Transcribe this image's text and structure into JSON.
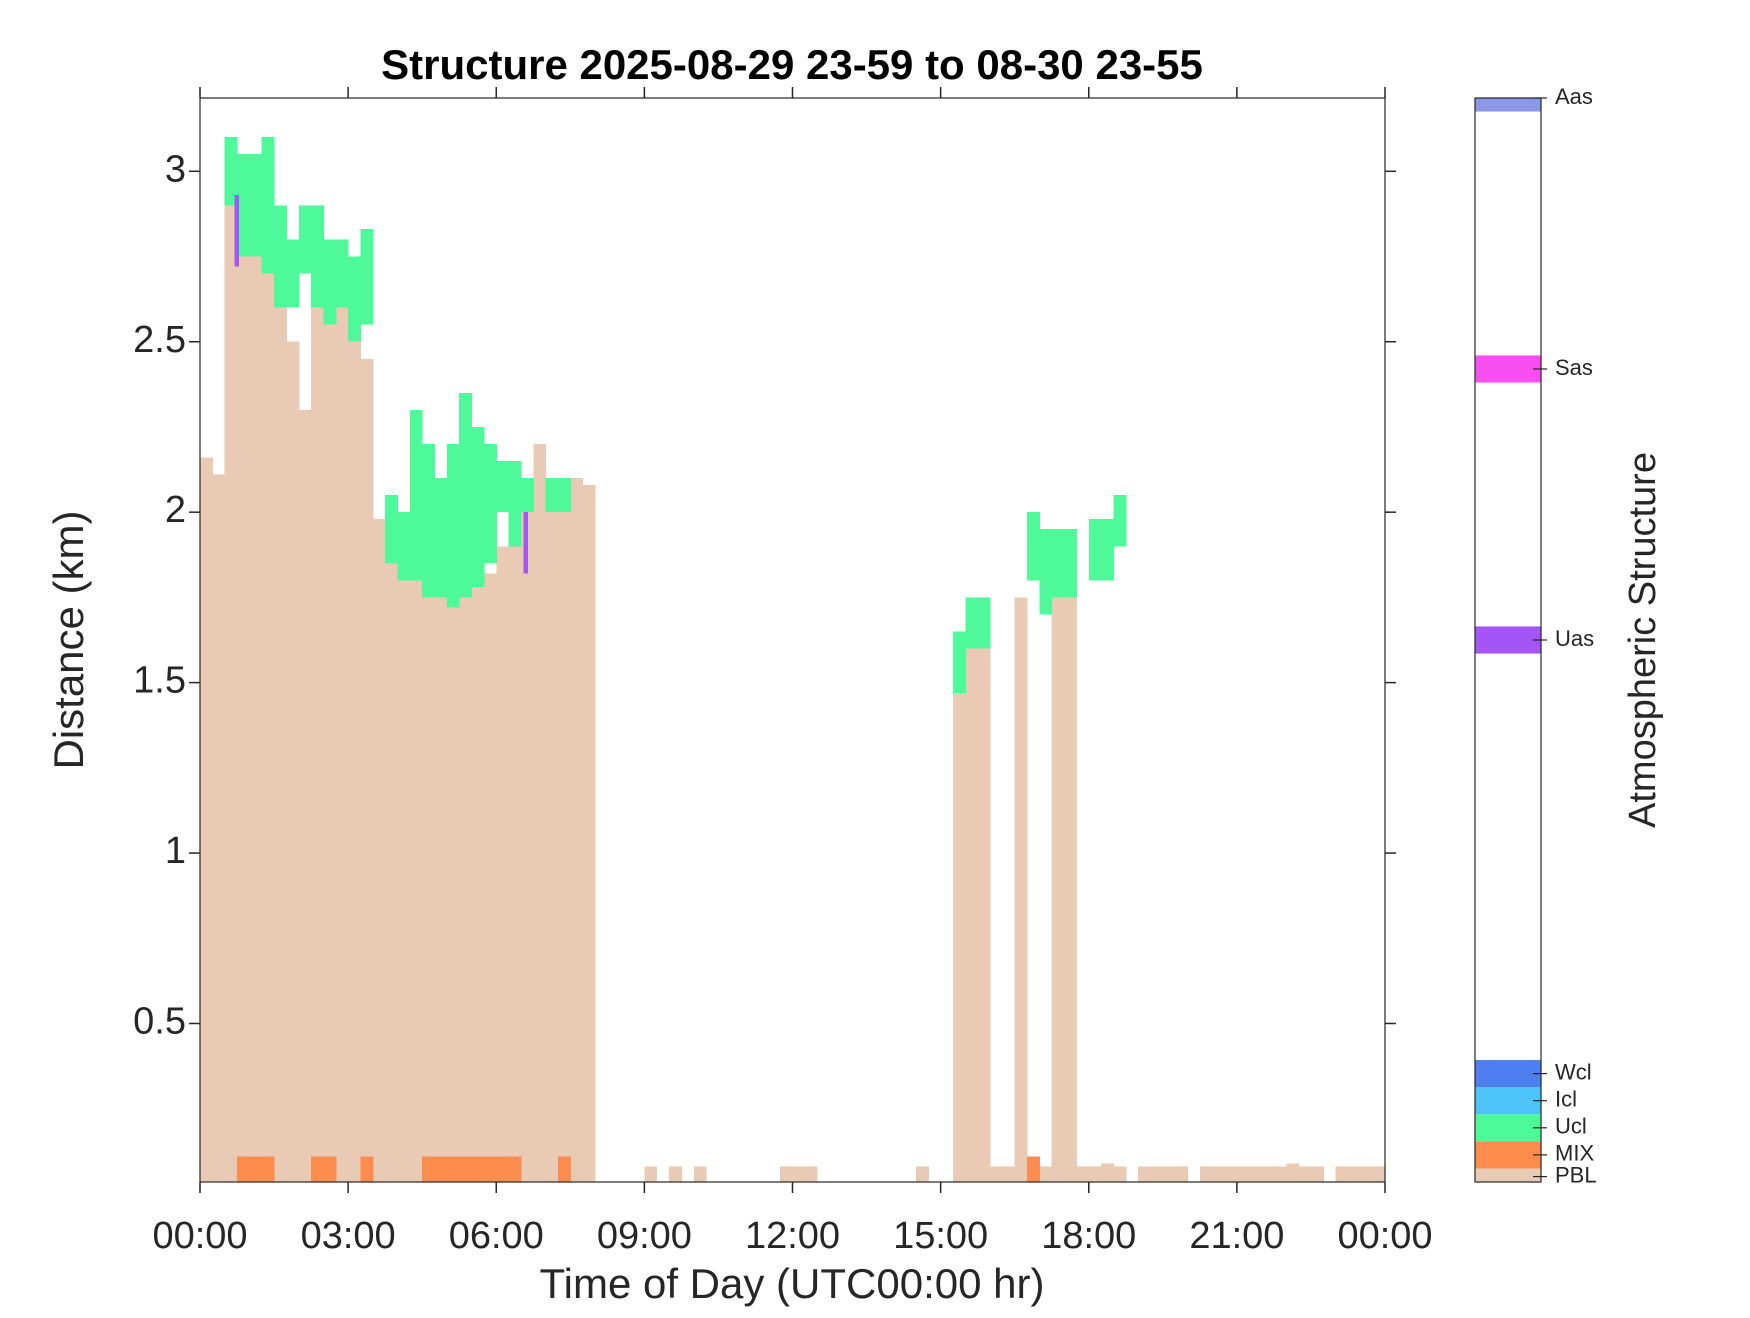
{
  "chart_data": {
    "type": "structure",
    "title": "Structure 2025-08-29 23-59 to 08-30 23-55",
    "x_label": "Time of Day (UTC00:00 hr)",
    "y_label": "Distance (km)",
    "xlim": [
      0,
      24
    ],
    "xticks": [
      {
        "value": 0,
        "label": "00:00"
      },
      {
        "value": 3,
        "label": "03:00"
      },
      {
        "value": 6,
        "label": "06:00"
      },
      {
        "value": 9,
        "label": "09:00"
      },
      {
        "value": 12,
        "label": "12:00"
      },
      {
        "value": 15,
        "label": "15:00"
      },
      {
        "value": 18,
        "label": "18:00"
      },
      {
        "value": 21,
        "label": "21:00"
      },
      {
        "value": 24,
        "label": "00:00"
      }
    ],
    "ylim": [
      0.035,
      3.215
    ],
    "yticks": [
      0.5,
      1,
      1.5,
      2,
      2.5,
      3
    ],
    "bin_width": 0.25,
    "colorbar_label": "Atmospheric Structure",
    "colorbar_lim": [
      0,
      40
    ],
    "classes": [
      {
        "name": "PBL",
        "color": "#e9cab4",
        "value": 0.2,
        "x": [
          0,
          0.25,
          0.5,
          0.75,
          1,
          1.25,
          1.5,
          1.75,
          2,
          2.25,
          2.5,
          2.75,
          3,
          3.25,
          3.5,
          3.75,
          4,
          4.25,
          4.5,
          4.75,
          5,
          5.25,
          5.5,
          5.75,
          6,
          6.25,
          6.5,
          6.75,
          7,
          7.25,
          7.5,
          7.75,
          9,
          9.5,
          10,
          11.75,
          12,
          12.25,
          14.5,
          15.25,
          15.5,
          15.75,
          16,
          16.25,
          16.5,
          16.75,
          17,
          17.25,
          17.5,
          17.75,
          18,
          18.25,
          18.5,
          19,
          19.25,
          19.5,
          19.75,
          20.25,
          20.5,
          20.75,
          21,
          21.25,
          21.5,
          21.75,
          22,
          22.25,
          22.5,
          23,
          23.25,
          23.5,
          23.75
        ],
        "values": [
          2.16,
          2.11,
          2.9,
          2.85,
          2.9,
          2.7,
          2.6,
          2.5,
          2.3,
          2.75,
          2.6,
          2.6,
          2.55,
          2.45,
          1.98,
          1.97,
          1.9,
          1.85,
          1.8,
          1.78,
          1.76,
          1.78,
          1.8,
          1.82,
          1.9,
          2.0,
          2.0,
          2.2,
          2.05,
          2.1,
          2.1,
          2.08,
          0.08,
          0.08,
          0.08,
          0.08,
          0.08,
          0.08,
          0.08,
          1.5,
          1.6,
          1.65,
          0.08,
          0.08,
          1.75,
          0.08,
          0.08,
          1.9,
          1.9,
          0.08,
          0.08,
          0.09,
          0.08,
          0.08,
          0.08,
          0.08,
          0.08,
          0.08,
          0.08,
          0.08,
          0.08,
          0.08,
          0.08,
          0.08,
          0.09,
          0.08,
          0.08,
          0.08,
          0.08,
          0.08,
          0.08
        ]
      },
      {
        "name": "MIX",
        "color": "#fc8d4e",
        "value": 1,
        "x": [
          0.75,
          1,
          1.25,
          2.25,
          2.5,
          3.25,
          4.5,
          4.75,
          5,
          5.25,
          5.5,
          5.75,
          6,
          6.25,
          7.25,
          16.75
        ],
        "values": [
          0.11,
          0.11,
          0.11,
          0.11,
          0.11,
          0.11,
          0.11,
          0.11,
          0.11,
          0.11,
          0.11,
          0.11,
          0.11,
          0.11,
          0.11,
          0.11
        ]
      },
      {
        "name": "Ucl",
        "color": "#4ef99a",
        "value": 2,
        "x": [
          0.5,
          0.75,
          1,
          1.25,
          1.5,
          1.75,
          2,
          2.25,
          2.5,
          2.75,
          3,
          3.25,
          3.75,
          4,
          4.25,
          4.5,
          4.75,
          5,
          5.25,
          5.5,
          5.75,
          6,
          6.25,
          6.5,
          7,
          7.25,
          15.25,
          15.5,
          15.75,
          16.75,
          17,
          17.25,
          17.5,
          18,
          18.25,
          18.5
        ],
        "bottoms": [
          2.9,
          2.75,
          2.75,
          2.7,
          2.6,
          2.6,
          2.7,
          2.6,
          2.55,
          2.6,
          2.5,
          2.55,
          1.85,
          1.8,
          1.8,
          1.75,
          1.75,
          1.72,
          1.75,
          1.78,
          1.85,
          2.0,
          1.9,
          2.0,
          2.0,
          2.0,
          1.47,
          1.6,
          1.6,
          1.8,
          1.7,
          1.75,
          1.75,
          1.8,
          1.8,
          1.9
        ],
        "values": [
          3.1,
          3.05,
          3.05,
          3.1,
          2.9,
          2.8,
          2.9,
          2.9,
          2.8,
          2.8,
          2.75,
          2.83,
          2.05,
          2.0,
          2.3,
          2.2,
          2.1,
          2.2,
          2.35,
          2.25,
          2.2,
          2.15,
          2.15,
          2.1,
          2.1,
          2.1,
          1.65,
          1.75,
          1.75,
          2.0,
          1.95,
          1.95,
          1.95,
          1.98,
          1.98,
          2.05
        ]
      },
      {
        "name": "Icl",
        "color": "#4dc3f7",
        "value": 3
      },
      {
        "name": "Wcl",
        "color": "#4f7ef0",
        "value": 4
      },
      {
        "name": "Uas",
        "color": "#a355f5",
        "value": 20,
        "bin_width": 0.08,
        "x": [
          0.7,
          6.55
        ],
        "bottoms": [
          2.72,
          1.82
        ],
        "values": [
          2.93,
          2.0
        ]
      },
      {
        "name": "Sas",
        "color": "#f94ff0",
        "value": 30
      },
      {
        "name": "Aas",
        "color": "#8b98e8",
        "value": 40
      }
    ]
  }
}
